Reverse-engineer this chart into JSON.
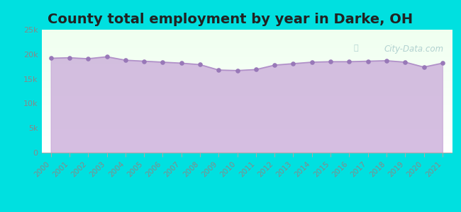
{
  "title": "County total employment by year in Darke, OH",
  "title_fontsize": 14,
  "title_fontweight": "bold",
  "background_color": "#00e0e0",
  "plot_bg_top": "#e8f5e9",
  "plot_bg_bottom": "#ffffff",
  "fill_color": "#c8a8d8",
  "fill_alpha": 0.75,
  "line_color": "#b090c8",
  "line_width": 1.2,
  "marker_color": "#9878b8",
  "marker_size": 14,
  "years": [
    2000,
    2001,
    2002,
    2003,
    2004,
    2005,
    2006,
    2007,
    2008,
    2009,
    2010,
    2011,
    2012,
    2013,
    2014,
    2015,
    2016,
    2017,
    2018,
    2019,
    2020,
    2021
  ],
  "values": [
    19200,
    19300,
    19100,
    19500,
    18800,
    18600,
    18400,
    18200,
    17900,
    16800,
    16700,
    16900,
    17800,
    18100,
    18400,
    18500,
    18500,
    18600,
    18700,
    18400,
    17400,
    18200
  ],
  "ylim": [
    0,
    25000
  ],
  "yticks": [
    0,
    5000,
    10000,
    15000,
    20000,
    25000
  ],
  "ytick_labels": [
    "0",
    "5k",
    "10k",
    "15k",
    "20k",
    "25k"
  ],
  "watermark": "City-Data.com",
  "tick_color": "#888888",
  "label_color": "#999999"
}
